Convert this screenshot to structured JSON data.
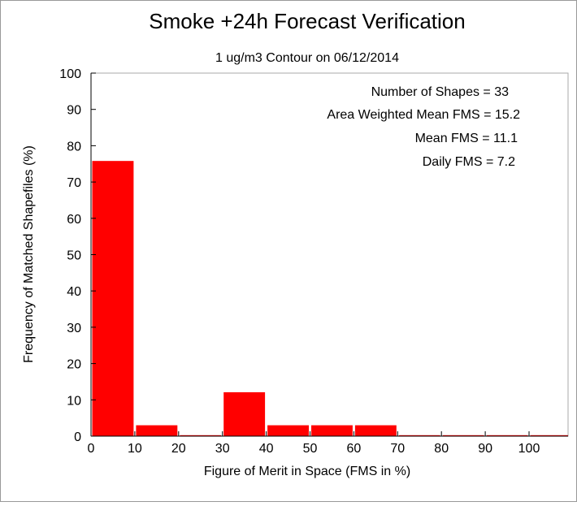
{
  "chart_data": {
    "type": "bar",
    "title": "Smoke +24h Forecast Verification",
    "subtitle": "1 ug/m3 Contour on 06/12/2014",
    "xlabel": "Figure of Merit in Space (FMS in %)",
    "ylabel": "Frequency of Matched Shapefiles (%)",
    "xlim": [
      0,
      110
    ],
    "ylim": [
      0,
      100
    ],
    "x_ticks": [
      0,
      10,
      20,
      30,
      40,
      50,
      60,
      70,
      80,
      90,
      100
    ],
    "y_ticks": [
      0,
      10,
      20,
      30,
      40,
      50,
      60,
      70,
      80,
      90,
      100
    ],
    "bin_width": 10,
    "bins": [
      0,
      10,
      20,
      30,
      40,
      50,
      60,
      70,
      80,
      90,
      100
    ],
    "values": [
      75.8,
      3.0,
      0,
      12.1,
      3.0,
      3.0,
      3.0,
      0,
      0,
      0,
      0
    ],
    "bar_color": "#ff0000",
    "grid": false,
    "annotations": [
      "Number of Shapes = 33",
      "Area Weighted Mean FMS = 15.2",
      "Mean FMS = 11.1",
      "Daily FMS = 7.2"
    ]
  }
}
